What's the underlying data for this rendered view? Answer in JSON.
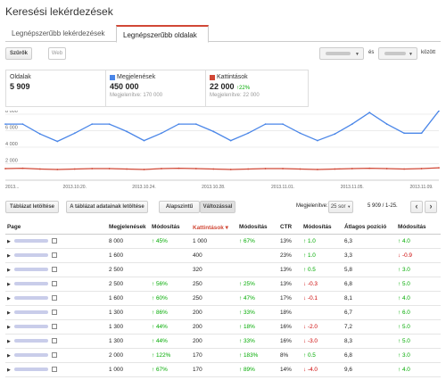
{
  "page": {
    "title": "Keresési lekérdezések"
  },
  "tabs": [
    {
      "label": "Legnépszerűbb lekérdezések"
    },
    {
      "label": "Legnépszerűbb oldalak"
    }
  ],
  "toolbar": {
    "filter_label": "Szűrők",
    "web_label": "Web",
    "and_label": "és",
    "between_label": "között"
  },
  "metrics": {
    "pages": {
      "label": "Oldalak",
      "value": "5 909"
    },
    "impressions": {
      "label": "Megjelenések",
      "value": "450 000",
      "sub": "Megjelenítve: 170 000",
      "color": "#4a86e8"
    },
    "clicks": {
      "label": "Kattintások",
      "value": "22 000",
      "change": "22%",
      "sub": "Megjelenítve: 22 000",
      "color": "#d14836"
    }
  },
  "chart_data": {
    "type": "line",
    "x": [
      "2013.10.16",
      "2013.10.17",
      "2013.10.18",
      "2013.10.19",
      "2013.10.20",
      "2013.10.21",
      "2013.10.22",
      "2013.10.23",
      "2013.10.24",
      "2013.10.25",
      "2013.10.26",
      "2013.10.27",
      "2013.10.28",
      "2013.10.29",
      "2013.10.30",
      "2013.10.31",
      "2013.11.01",
      "2013.11.02",
      "2013.11.03",
      "2013.11.04",
      "2013.11.05",
      "2013.11.06",
      "2013.11.07",
      "2013.11.08",
      "2013.11.09",
      "2013.11.10"
    ],
    "x_tick_labels": [
      "2013...",
      "2013.10.20.",
      "2013.10.24.",
      "2013.10.28.",
      "2013.11.01.",
      "2013.11.05.",
      "2013.11.09."
    ],
    "ylim": [
      0,
      8000
    ],
    "y_ticks": [
      "2 000",
      "4 000",
      "6 000",
      "8 000"
    ],
    "series": [
      {
        "color": "#4a86e8",
        "values": [
          6800,
          6800,
          5600,
          4700,
          5700,
          6800,
          6800,
          5900,
          4800,
          5700,
          6800,
          6800,
          5900,
          4800,
          5700,
          6800,
          6800,
          5700,
          4800,
          5600,
          6800,
          8200,
          6800,
          5700,
          5700,
          8400
        ]
      },
      {
        "color": "#d14836",
        "values": [
          1400,
          1450,
          1350,
          1300,
          1350,
          1400,
          1400,
          1350,
          1300,
          1400,
          1450,
          1400,
          1350,
          1300,
          1350,
          1400,
          1400,
          1350,
          1300,
          1350,
          1400,
          1450,
          1400,
          1350,
          1400,
          1500
        ]
      }
    ]
  },
  "controls": {
    "download_table": "Táblázat letöltése",
    "download_chart_data": "A táblázat adatainak letöltése",
    "basic": "Alapszintű",
    "with_changes": "Változással",
    "shown_label": "Megjelenítve:",
    "rows_value": "25 sor",
    "range": "5 909 / 1-25.",
    "prev": "‹",
    "next": "›"
  },
  "table": {
    "headers": [
      "Page",
      "Megjelenések",
      "Módosítás",
      "Kattintások ▾",
      "Módosítás",
      "CTR",
      "Módosítás",
      "Átlagos pozíció",
      "Módosítás"
    ],
    "rows": [
      [
        "8 000",
        "↑ 45%",
        "1 000",
        "↑ 67%",
        "13%",
        "↑ 1.0",
        "6,3",
        "↑ 4.0"
      ],
      [
        "1 600",
        "",
        "400",
        "",
        "23%",
        "↑ 1.0",
        "3,3",
        "↓ -0.9"
      ],
      [
        "2 500",
        "",
        "320",
        "",
        "13%",
        "↑ 0.5",
        "5,8",
        "↑ 3.0"
      ],
      [
        "2 500",
        "↑ 56%",
        "250",
        "↑ 25%",
        "13%",
        "↓ -0.3",
        "6,8",
        "↑ 5.0"
      ],
      [
        "1 600",
        "↑ 60%",
        "250",
        "↑ 47%",
        "17%",
        "↓ -0.1",
        "8,1",
        "↑ 4.0"
      ],
      [
        "1 300",
        "↑ 86%",
        "200",
        "↑ 33%",
        "18%",
        "",
        "6,7",
        "↑ 6.0"
      ],
      [
        "1 300",
        "↑ 44%",
        "200",
        "↑ 18%",
        "16%",
        "↓ -2.0",
        "7,2",
        "↑ 5.0"
      ],
      [
        "1 300",
        "↑ 44%",
        "200",
        "↑ 33%",
        "16%",
        "↓ -3.0",
        "8,3",
        "↑ 5.0"
      ],
      [
        "2 000",
        "↑ 122%",
        "170",
        "↑ 183%",
        "8%",
        "↑ 0.5",
        "6,8",
        "↑ 3.0"
      ],
      [
        "1 000",
        "↑ 67%",
        "170",
        "↑ 89%",
        "14%",
        "↓ -4.0",
        "9,6",
        "↑ 4.0"
      ]
    ]
  }
}
